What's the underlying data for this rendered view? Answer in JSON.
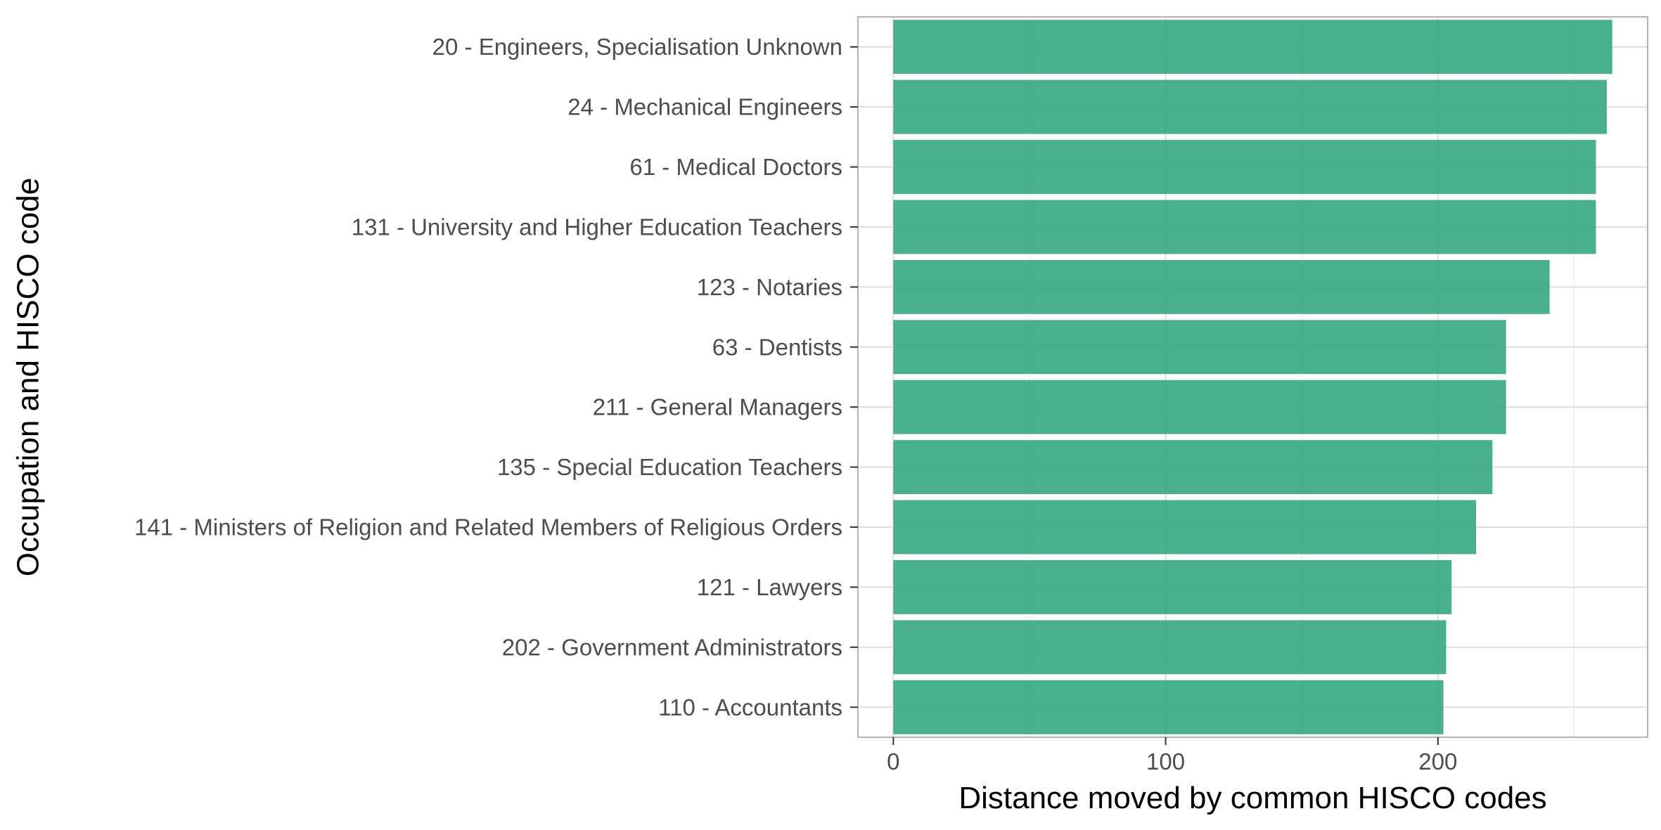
{
  "chart_data": {
    "type": "bar",
    "orientation": "horizontal",
    "categories": [
      "20 - Engineers, Specialisation Unknown",
      "24 - Mechanical Engineers",
      "61 - Medical Doctors",
      "131 - University and Higher Education Teachers",
      "123 - Notaries",
      "63 - Dentists",
      "211 - General Managers",
      "135 - Special Education Teachers",
      "141 - Ministers of Religion and Related Members of Religious Orders",
      "121 - Lawyers",
      "202 - Government Administrators",
      "110 - Accountants"
    ],
    "values": [
      264,
      262,
      258,
      258,
      241,
      225,
      225,
      220,
      214,
      205,
      203,
      202
    ],
    "xlabel": "Distance moved by common HISCO codes",
    "ylabel": "Occupation and HISCO code",
    "xlim": [
      -13,
      277
    ],
    "xticks": [
      0,
      100,
      200
    ],
    "xtick_labels": [
      "0",
      "100",
      "200"
    ],
    "grid": true,
    "bar_color": "#35a682"
  }
}
